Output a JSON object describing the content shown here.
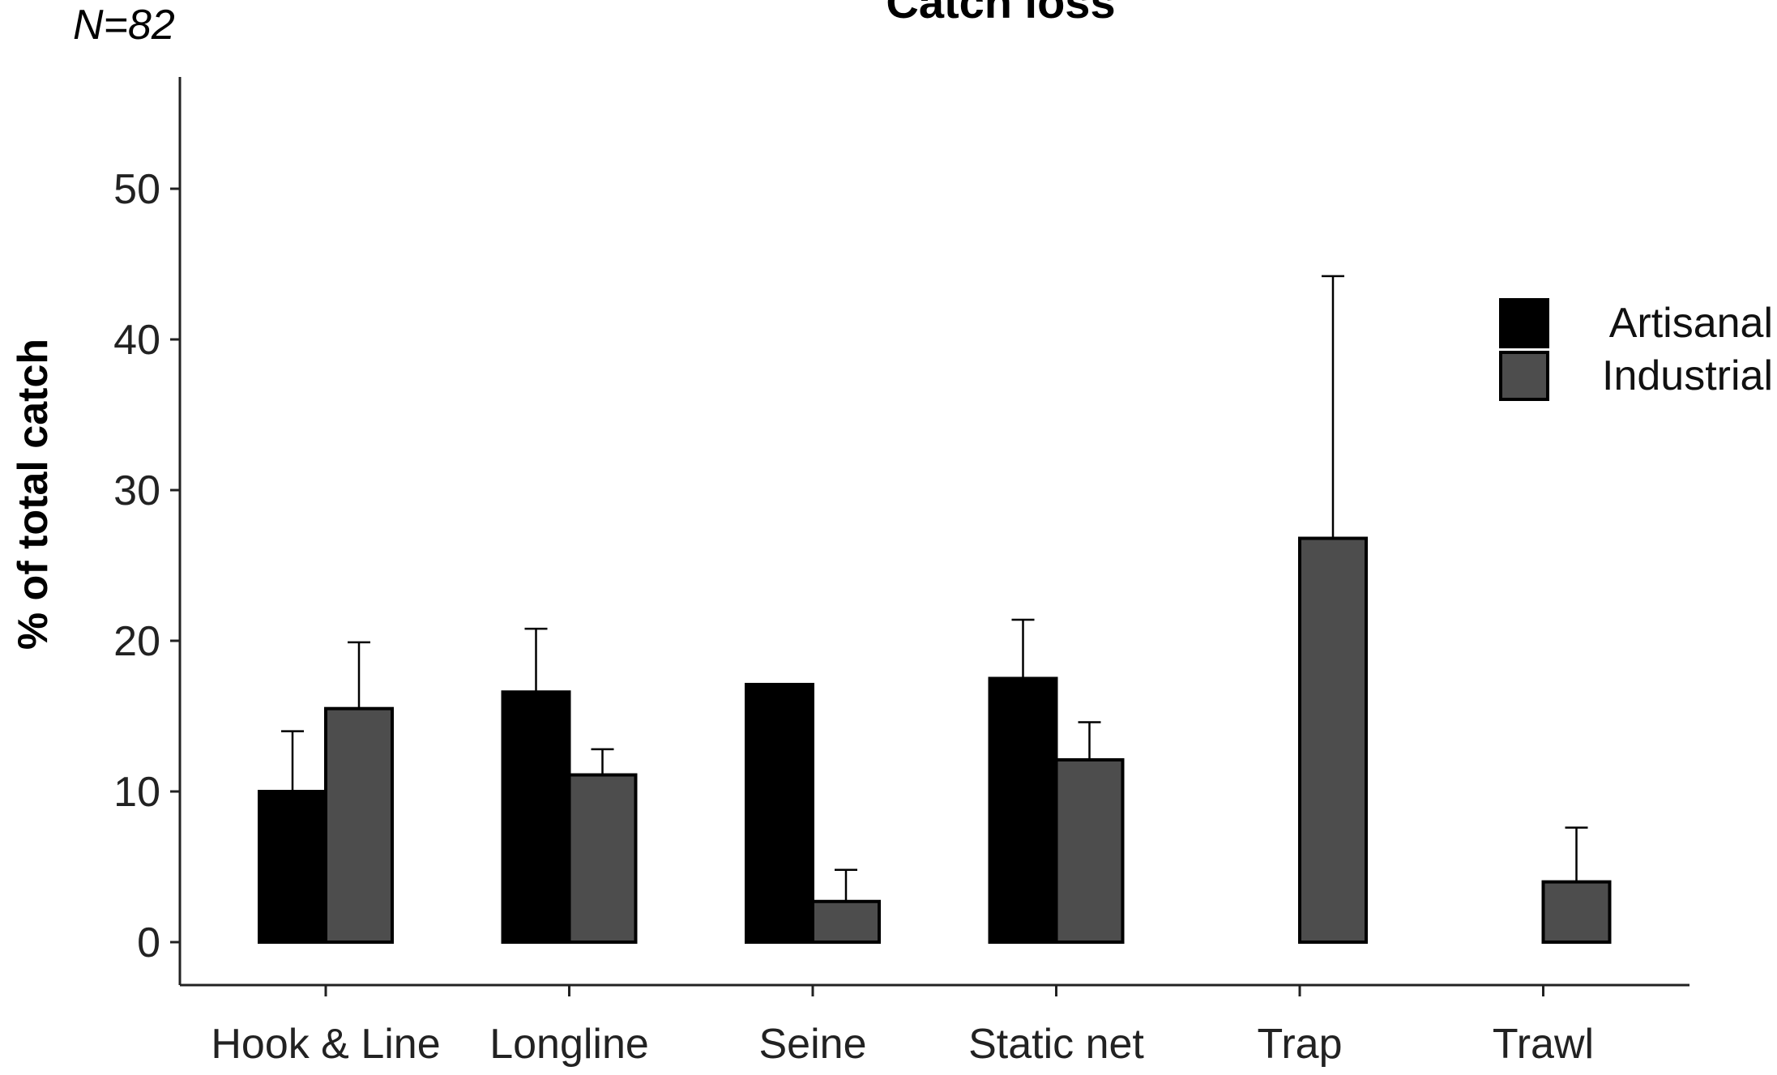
{
  "annotation": "N=82",
  "chart_data": {
    "type": "bar",
    "title": "Catch loss",
    "xlabel": "",
    "ylabel": "% of total catch",
    "ylim": [
      0,
      57
    ],
    "yticks": [
      0,
      10,
      20,
      30,
      40,
      50
    ],
    "yticks_labels": [
      "0",
      "10",
      "20",
      "30",
      "40",
      "50"
    ],
    "grid": false,
    "legend_position": "right",
    "categories": [
      "Hook & Line",
      "Longline",
      "Seine",
      "Static net",
      "Trap",
      "Trawl"
    ],
    "series": [
      {
        "name": "Artisanal",
        "color": "#000000",
        "values": [
          10.0,
          16.6,
          17.1,
          17.5,
          null,
          null
        ],
        "error_upper": [
          14.0,
          20.8,
          null,
          21.4,
          null,
          null
        ]
      },
      {
        "name": "Industrial",
        "color": "#4d4d4d",
        "values": [
          15.5,
          11.1,
          2.7,
          12.1,
          26.8,
          4.0
        ],
        "error_upper": [
          19.9,
          12.8,
          4.8,
          14.6,
          44.2,
          7.6
        ]
      }
    ]
  }
}
